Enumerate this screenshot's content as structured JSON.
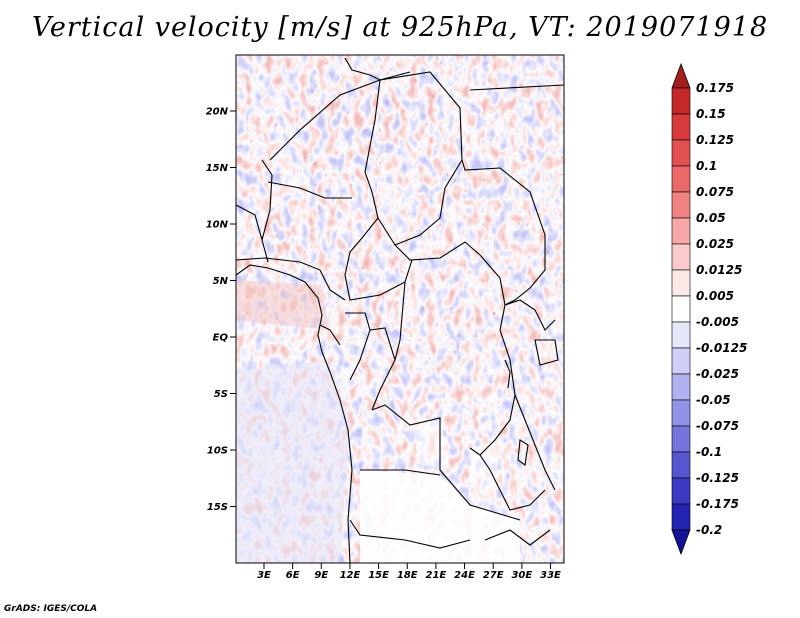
{
  "title": "Vertical velocity [m/s] at 925hPa, VT: 2019071918",
  "footer": "GrADS: IGES/COLA",
  "map": {
    "lat_labels": [
      {
        "text": "20N",
        "lat": 20
      },
      {
        "text": "15N",
        "lat": 15
      },
      {
        "text": "10N",
        "lat": 10
      },
      {
        "text": "5N",
        "lat": 5
      },
      {
        "text": "EQ",
        "lat": 0
      },
      {
        "text": "5S",
        "lat": -5
      },
      {
        "text": "10S",
        "lat": -10
      },
      {
        "text": "15S",
        "lat": -15
      }
    ],
    "lon_labels": [
      {
        "text": "3E",
        "lon": 3
      },
      {
        "text": "6E",
        "lon": 6
      },
      {
        "text": "9E",
        "lon": 9
      },
      {
        "text": "12E",
        "lon": 12
      },
      {
        "text": "15E",
        "lon": 15
      },
      {
        "text": "18E",
        "lon": 18
      },
      {
        "text": "21E",
        "lon": 21
      },
      {
        "text": "24E",
        "lon": 24
      },
      {
        "text": "27E",
        "lon": 27
      },
      {
        "text": "30E",
        "lon": 30
      },
      {
        "text": "33E",
        "lon": 33
      }
    ]
  },
  "colorbar": {
    "levels": [
      "0.175",
      "0.15",
      "0.125",
      "0.1",
      "0.075",
      "0.05",
      "0.025",
      "0.0125",
      "0.005",
      "-0.005",
      "-0.0125",
      "-0.025",
      "-0.05",
      "-0.075",
      "-0.1",
      "-0.125",
      "-0.175",
      "-0.2"
    ],
    "colors": [
      "#a51e1e",
      "#c42828",
      "#d63a3a",
      "#e25050",
      "#ea6868",
      "#f08282",
      "#f6a8a8",
      "#fbcaca",
      "#fde8e8",
      "#ffffff",
      "#e6e6fb",
      "#cfcff7",
      "#b2b2f0",
      "#9292e6",
      "#7474dc",
      "#5656cf",
      "#3a3ac2",
      "#2323b3",
      "#13139a"
    ]
  }
}
